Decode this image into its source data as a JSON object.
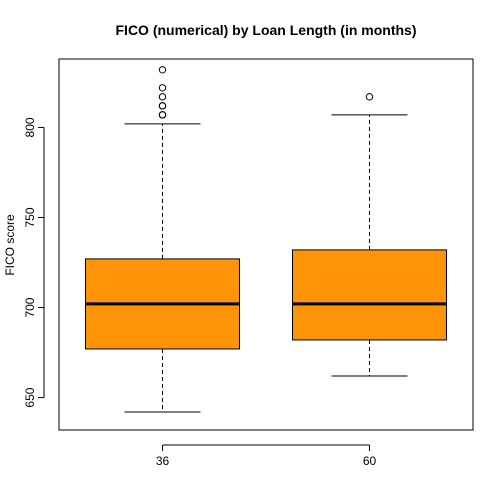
{
  "chart_data": {
    "type": "boxplot",
    "title": "FICO (numerical) by Loan Length (in months)",
    "xlabel": "",
    "ylabel": "FICO score",
    "ylim": [
      632,
      838
    ],
    "y_ticks": [
      650,
      700,
      750,
      800
    ],
    "grid": false,
    "categories": [
      "36",
      "60"
    ],
    "box_color": "#ff9408",
    "series": [
      {
        "category": "36",
        "whisker_low": 642,
        "q1": 677,
        "median": 702,
        "q3": 727,
        "whisker_high": 802,
        "outliers": [
          807,
          807,
          812,
          812,
          817,
          822,
          832
        ]
      },
      {
        "category": "60",
        "whisker_low": 662,
        "q1": 682,
        "median": 702,
        "q3": 732,
        "whisker_high": 807,
        "outliers": [
          817
        ]
      }
    ]
  }
}
